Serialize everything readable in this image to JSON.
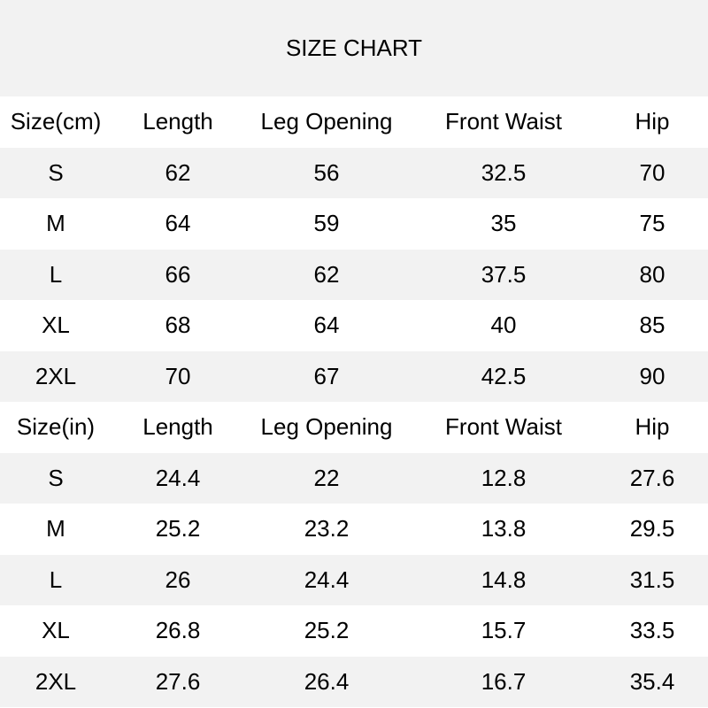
{
  "title": "SIZE CHART",
  "tables": [
    {
      "header": [
        "Size(cm)",
        "Length",
        "Leg Opening",
        "Front Waist",
        "Hip"
      ],
      "rows": [
        [
          "S",
          "62",
          "56",
          "32.5",
          "70"
        ],
        [
          "M",
          "64",
          "59",
          "35",
          "75"
        ],
        [
          "L",
          "66",
          "62",
          "37.5",
          "80"
        ],
        [
          "XL",
          "68",
          "64",
          "40",
          "85"
        ],
        [
          "2XL",
          "70",
          "67",
          "42.5",
          "90"
        ]
      ]
    },
    {
      "header": [
        "Size(in)",
        "Length",
        "Leg Opening",
        "Front Waist",
        "Hip"
      ],
      "rows": [
        [
          "S",
          "24.4",
          "22",
          "12.8",
          "27.6"
        ],
        [
          "M",
          "25.2",
          "23.2",
          "13.8",
          "29.5"
        ],
        [
          "L",
          "26",
          "24.4",
          "14.8",
          "31.5"
        ],
        [
          "XL",
          "26.8",
          "25.2",
          "15.7",
          "33.5"
        ],
        [
          "2XL",
          "27.6",
          "26.4",
          "16.7",
          "35.4"
        ]
      ]
    }
  ]
}
